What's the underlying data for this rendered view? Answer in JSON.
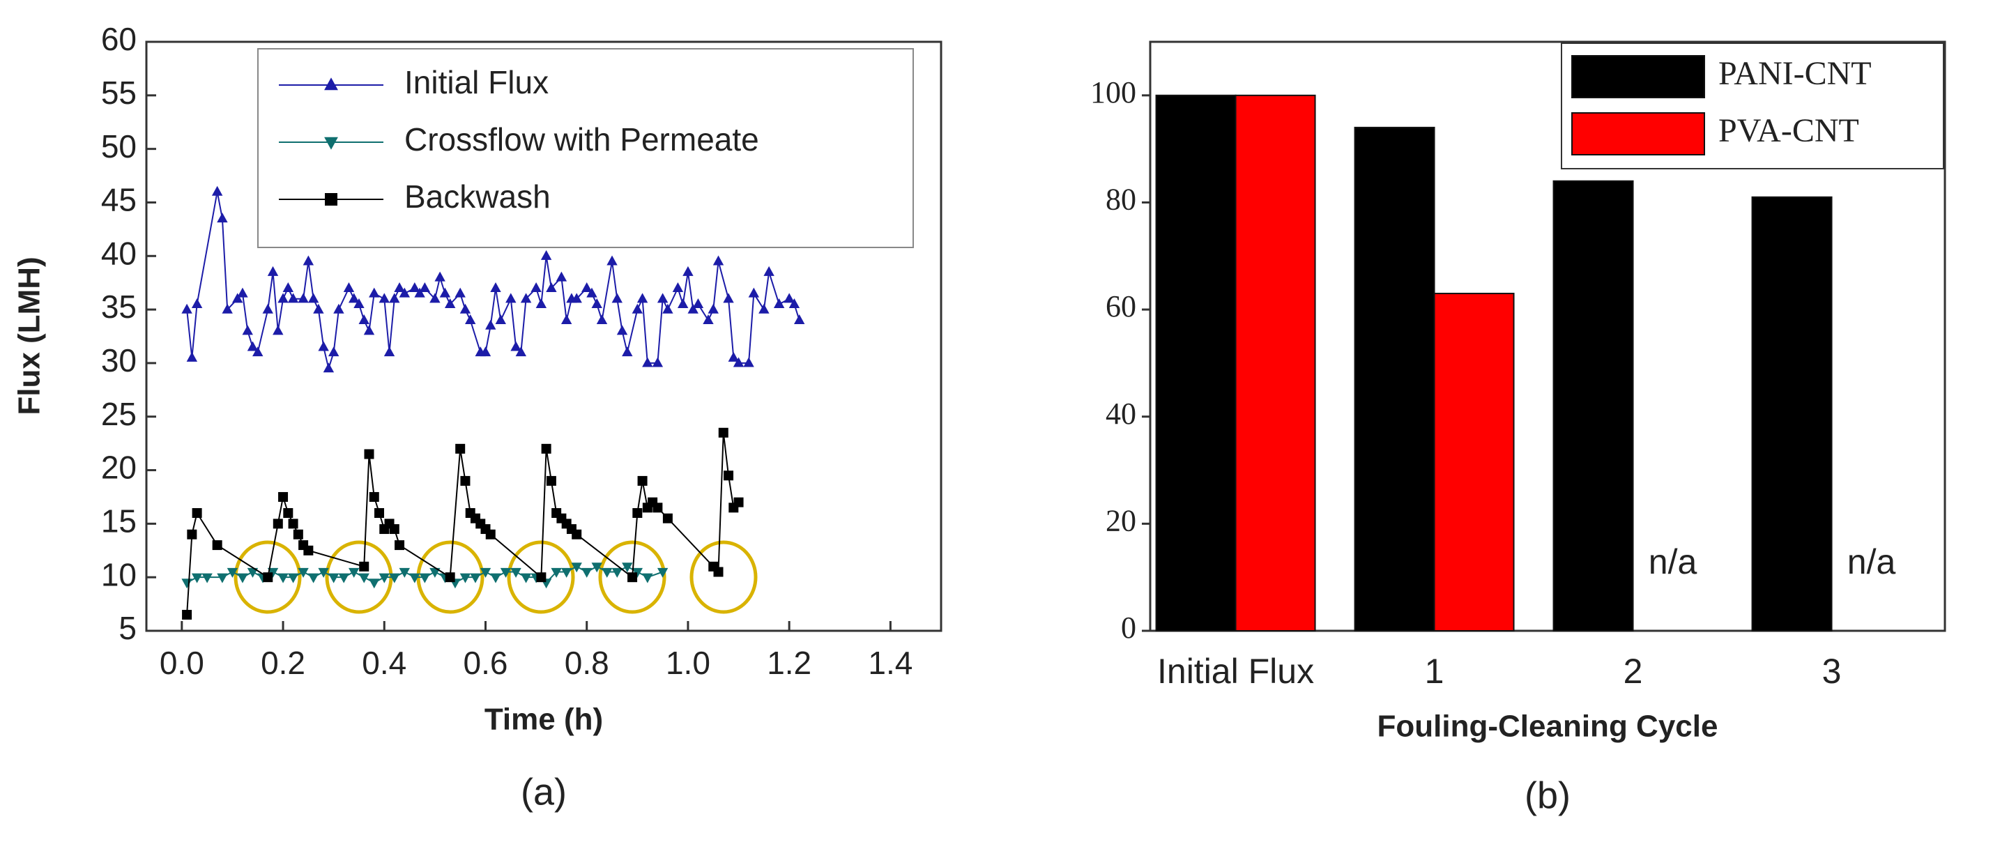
{
  "chart_data": [
    {
      "type": "line",
      "caption": "(a)",
      "x_label": "Time (h)",
      "y_label": "Flux (LMH)",
      "xlim": [
        -0.07,
        1.5
      ],
      "xticks": [
        {
          "value": 0,
          "label": "0.0"
        },
        0.2,
        0.4,
        0.6,
        0.8,
        {
          "value": 1,
          "label": "1.0"
        },
        1.2,
        1.4
      ],
      "ylim": [
        5,
        60
      ],
      "yticks": [
        5,
        10,
        15,
        20,
        25,
        30,
        35,
        40,
        45,
        50,
        55,
        60
      ],
      "grid": false,
      "legend": "upper right",
      "series": [
        {
          "name": "Initial Flux",
          "color": "#1c1ca8",
          "marker": "triangle-up",
          "x": [
            0.01,
            0.02,
            0.03,
            0.07,
            0.08,
            0.09,
            0.11,
            0.12,
            0.13,
            0.14,
            0.15,
            0.17,
            0.18,
            0.19,
            0.2,
            0.21,
            0.22,
            0.24,
            0.25,
            0.26,
            0.27,
            0.28,
            0.29,
            0.3,
            0.31,
            0.33,
            0.34,
            0.35,
            0.36,
            0.37,
            0.38,
            0.4,
            0.41,
            0.42,
            0.43,
            0.44,
            0.46,
            0.47,
            0.48,
            0.5,
            0.51,
            0.52,
            0.53,
            0.55,
            0.56,
            0.57,
            0.59,
            0.6,
            0.61,
            0.62,
            0.63,
            0.65,
            0.66,
            0.67,
            0.68,
            0.7,
            0.71,
            0.72,
            0.73,
            0.75,
            0.76,
            0.77,
            0.78,
            0.8,
            0.81,
            0.82,
            0.83,
            0.85,
            0.86,
            0.87,
            0.88,
            0.9,
            0.91,
            0.92,
            0.94,
            0.95,
            0.96,
            0.98,
            0.99,
            1.0,
            1.01,
            1.02,
            1.04,
            1.05,
            1.06,
            1.08,
            1.09,
            1.1,
            1.12,
            1.13,
            1.15,
            1.16,
            1.18,
            1.2,
            1.21,
            1.22
          ],
          "values": [
            35,
            30.5,
            35.5,
            46,
            43.5,
            35,
            36,
            36.5,
            33,
            31.5,
            31,
            35,
            38.5,
            33,
            36,
            37,
            36,
            36,
            39.5,
            36,
            35,
            31.5,
            29.5,
            31,
            35,
            37,
            36,
            35.5,
            34,
            33,
            36.5,
            36,
            31,
            36,
            37,
            36.5,
            37,
            36.5,
            37,
            36,
            38,
            36.5,
            35.5,
            36.5,
            35,
            34,
            31,
            31,
            33.5,
            37,
            34,
            36,
            31.5,
            31,
            36,
            37,
            35.5,
            40,
            37,
            38,
            34,
            36,
            36,
            37,
            36.5,
            35.5,
            34,
            39.5,
            36,
            33,
            31,
            35,
            36,
            30,
            30,
            36,
            35,
            37,
            35.5,
            38.5,
            35,
            35.5,
            34,
            35,
            39.5,
            36,
            30.5,
            30,
            30,
            36.5,
            35,
            38.5,
            35.5,
            36,
            35.5,
            34
          ]
        },
        {
          "name": "Crossflow with Permeate",
          "color": "#0f6f6f",
          "marker": "triangle-down",
          "x": [
            0.01,
            0.03,
            0.05,
            0.08,
            0.1,
            0.12,
            0.14,
            0.16,
            0.18,
            0.2,
            0.22,
            0.24,
            0.26,
            0.28,
            0.3,
            0.32,
            0.34,
            0.36,
            0.38,
            0.4,
            0.42,
            0.44,
            0.46,
            0.48,
            0.5,
            0.52,
            0.54,
            0.56,
            0.58,
            0.6,
            0.62,
            0.64,
            0.66,
            0.68,
            0.7,
            0.72,
            0.74,
            0.76,
            0.78,
            0.8,
            0.82,
            0.84,
            0.86,
            0.88,
            0.9,
            0.92,
            0.95
          ],
          "values": [
            9.5,
            10,
            10,
            10,
            10.5,
            10,
            10.5,
            10,
            10.5,
            10,
            10,
            10.5,
            10,
            10.5,
            10,
            10,
            10.5,
            10,
            9.5,
            10,
            10,
            10.5,
            10,
            10,
            10.5,
            10,
            9.5,
            10,
            10,
            10.5,
            10,
            10.5,
            10.5,
            10,
            10,
            9.5,
            10.5,
            10.5,
            11,
            10.5,
            11,
            10.5,
            10.5,
            11,
            10.5,
            10,
            10.5
          ]
        },
        {
          "name": "Backwash",
          "color": "#000000",
          "marker": "square",
          "x": [
            0.01,
            0.02,
            0.03,
            0.07,
            0.17,
            0.19,
            0.2,
            0.21,
            0.22,
            0.23,
            0.24,
            0.25,
            0.36,
            0.37,
            0.38,
            0.39,
            0.4,
            0.41,
            0.42,
            0.43,
            0.53,
            0.55,
            0.56,
            0.57,
            0.58,
            0.59,
            0.6,
            0.61,
            0.71,
            0.72,
            0.73,
            0.74,
            0.75,
            0.76,
            0.77,
            0.78,
            0.89,
            0.9,
            0.91,
            0.92,
            0.93,
            0.94,
            0.96,
            1.05,
            1.06,
            1.07,
            1.08,
            1.09,
            1.1
          ],
          "values": [
            6.5,
            14,
            16,
            13,
            10,
            15,
            17.5,
            16,
            15,
            14,
            13,
            12.5,
            11,
            21.5,
            17.5,
            16,
            14.5,
            15,
            14.5,
            13,
            10,
            22,
            19,
            16,
            15.5,
            15,
            14.5,
            14,
            10,
            22,
            19,
            16,
            15.5,
            15,
            14.5,
            14,
            10,
            16,
            19,
            16.5,
            17,
            16.5,
            15.5,
            11,
            10.5,
            23.5,
            19.5,
            16.5,
            17
          ]
        }
      ]
    },
    {
      "type": "bar",
      "caption": "(b)",
      "x_label": "Fouling-Cleaning Cycle",
      "categories": [
        "Initial Flux",
        "1",
        "2",
        "3"
      ],
      "ylim": [
        0,
        110
      ],
      "yticks": [
        0,
        20,
        40,
        60,
        80,
        100
      ],
      "grid": false,
      "legend": "upper right",
      "series": [
        {
          "name": "PANI-CNT",
          "color": "#000000",
          "values": [
            100,
            94,
            84,
            81
          ]
        },
        {
          "name": "PVA-CNT",
          "color": "#ff0000",
          "values": [
            100,
            63,
            null,
            null
          ]
        }
      ],
      "annotations": [
        {
          "text": "n/a",
          "category": "2"
        },
        {
          "text": "n/a",
          "category": "3"
        }
      ]
    }
  ]
}
